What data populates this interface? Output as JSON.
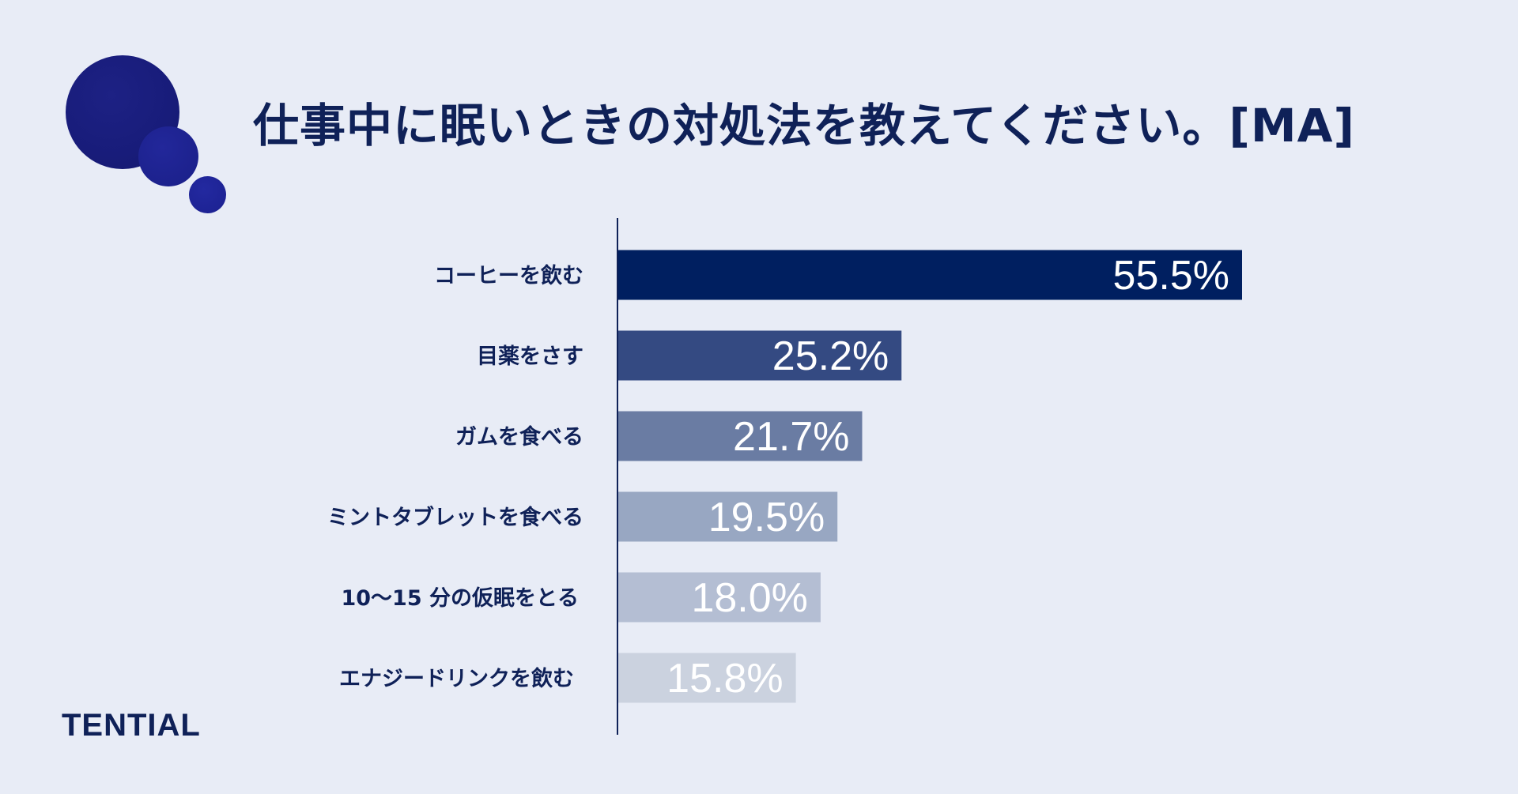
{
  "title": "仕事中に眠いときの対処法を教えてください。[MA]",
  "logo": "TENTIAL",
  "colors": {
    "background": "#e8ecf6",
    "text": "#0f2158",
    "bubble": "#1a1f86",
    "bars": [
      "#001f60",
      "#344a82",
      "#6a7ca3",
      "#98a7c2",
      "#b4bed3",
      "#cbd2df"
    ]
  },
  "chart_data": {
    "type": "bar",
    "orientation": "horizontal",
    "title": "仕事中に眠いときの対処法を教えてください。[MA]",
    "categories": [
      "コーヒーを飲む",
      "目薬をさす",
      "ガムを食べる",
      "ミントタブレットを食べる",
      "10～15 分の仮眠をとる",
      "エナジードリンクを飲む"
    ],
    "values": [
      55.5,
      25.2,
      21.7,
      19.5,
      18.0,
      15.8
    ],
    "value_labels": [
      "55.5%",
      "25.2%",
      "21.7%",
      "19.5%",
      "18.0%",
      "15.8%"
    ],
    "unit": "%",
    "xlim": [
      0,
      100
    ],
    "grid": false,
    "legend": "none"
  }
}
